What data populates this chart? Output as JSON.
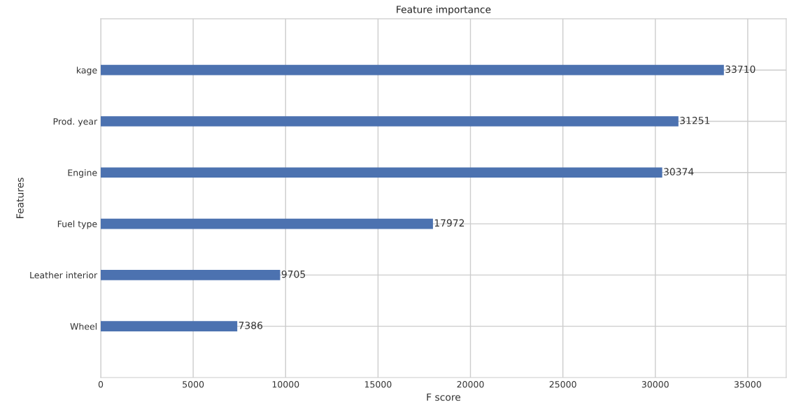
{
  "chart_data": {
    "type": "bar",
    "orientation": "horizontal",
    "title": "Feature importance",
    "xlabel": "F score",
    "ylabel": "Features",
    "categories": [
      "kage",
      "Prod. year",
      "Engine",
      "Fuel type",
      "Leather interior",
      "Wheel"
    ],
    "values": [
      33710,
      31251,
      30374,
      17972,
      9705,
      7386
    ],
    "color": "#4c72b0",
    "xlim": [
      0,
      37081
    ],
    "xticks": [
      0,
      5000,
      10000,
      15000,
      20000,
      25000,
      30000,
      35000
    ],
    "grid": true,
    "data_labels": true
  }
}
